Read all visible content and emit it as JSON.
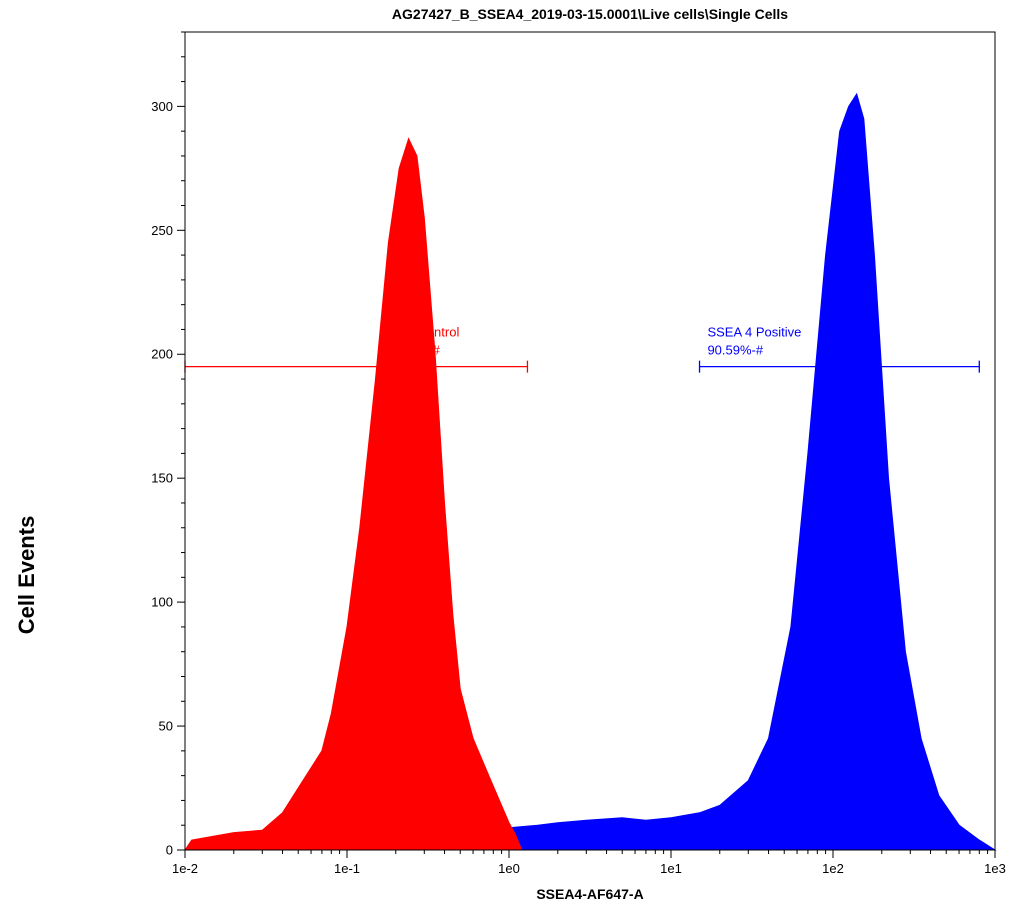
{
  "chart_data": {
    "type": "area",
    "title": "AG27427_B_SSEA4_2019-03-15.0001\\Live cells\\Single Cells",
    "xlabel": "SSEA4-AF647-A",
    "ylabel": "Cell Events",
    "x_scale": "log",
    "xlim": [
      0.01,
      1000
    ],
    "ylim": [
      0,
      330
    ],
    "x_ticks": [
      {
        "value": 0.01,
        "label": "1e-2"
      },
      {
        "value": 0.1,
        "label": "1e-1"
      },
      {
        "value": 1,
        "label": "1e0"
      },
      {
        "value": 10,
        "label": "1e1"
      },
      {
        "value": 100,
        "label": "1e2"
      },
      {
        "value": 1000,
        "label": "1e3"
      }
    ],
    "y_ticks": [
      {
        "value": 0,
        "label": "0"
      },
      {
        "value": 50,
        "label": "50"
      },
      {
        "value": 100,
        "label": "100"
      },
      {
        "value": 150,
        "label": "150"
      },
      {
        "value": 200,
        "label": "200"
      },
      {
        "value": 250,
        "label": "250"
      },
      {
        "value": 300,
        "label": "300"
      }
    ],
    "grid": false,
    "series": [
      {
        "color": "#0000ff",
        "points": [
          [
            0.01,
            0
          ],
          [
            0.03,
            1
          ],
          [
            0.1,
            2
          ],
          [
            0.2,
            4
          ],
          [
            0.3,
            5
          ],
          [
            0.5,
            7
          ],
          [
            0.8,
            8
          ],
          [
            1.0,
            9
          ],
          [
            1.5,
            10
          ],
          [
            2.0,
            11
          ],
          [
            3.0,
            12
          ],
          [
            5.0,
            13
          ],
          [
            7.0,
            12
          ],
          [
            10,
            13
          ],
          [
            15,
            15
          ],
          [
            20,
            18
          ],
          [
            30,
            28
          ],
          [
            40,
            45
          ],
          [
            55,
            90
          ],
          [
            70,
            160
          ],
          [
            90,
            240
          ],
          [
            110,
            290
          ],
          [
            125,
            300
          ],
          [
            140,
            305
          ],
          [
            155,
            295
          ],
          [
            180,
            240
          ],
          [
            220,
            150
          ],
          [
            280,
            80
          ],
          [
            350,
            45
          ],
          [
            450,
            22
          ],
          [
            600,
            10
          ],
          [
            800,
            4
          ],
          [
            1000,
            0
          ]
        ]
      },
      {
        "color": "#ff0000",
        "points": [
          [
            0.01,
            0
          ],
          [
            0.011,
            4
          ],
          [
            0.02,
            7
          ],
          [
            0.03,
            8
          ],
          [
            0.04,
            15
          ],
          [
            0.05,
            25
          ],
          [
            0.07,
            40
          ],
          [
            0.08,
            55
          ],
          [
            0.1,
            90
          ],
          [
            0.12,
            130
          ],
          [
            0.15,
            190
          ],
          [
            0.18,
            245
          ],
          [
            0.21,
            275
          ],
          [
            0.24,
            287
          ],
          [
            0.27,
            280
          ],
          [
            0.3,
            255
          ],
          [
            0.35,
            200
          ],
          [
            0.4,
            140
          ],
          [
            0.45,
            95
          ],
          [
            0.5,
            65
          ],
          [
            0.6,
            45
          ],
          [
            0.75,
            30
          ],
          [
            0.9,
            18
          ],
          [
            1.0,
            11
          ],
          [
            1.1,
            6
          ],
          [
            1.2,
            0
          ]
        ]
      }
    ],
    "gates": [
      {
        "name": "ISO Control",
        "value": "2.25%-#",
        "x_start": 0.01,
        "x_end": 1.3,
        "y": 195,
        "color": "#ff0000"
      },
      {
        "name": "SSEA 4 Positive",
        "value": "90.59%-#",
        "x_start": 15,
        "x_end": 800,
        "y": 195,
        "color": "#0000ff"
      }
    ]
  }
}
